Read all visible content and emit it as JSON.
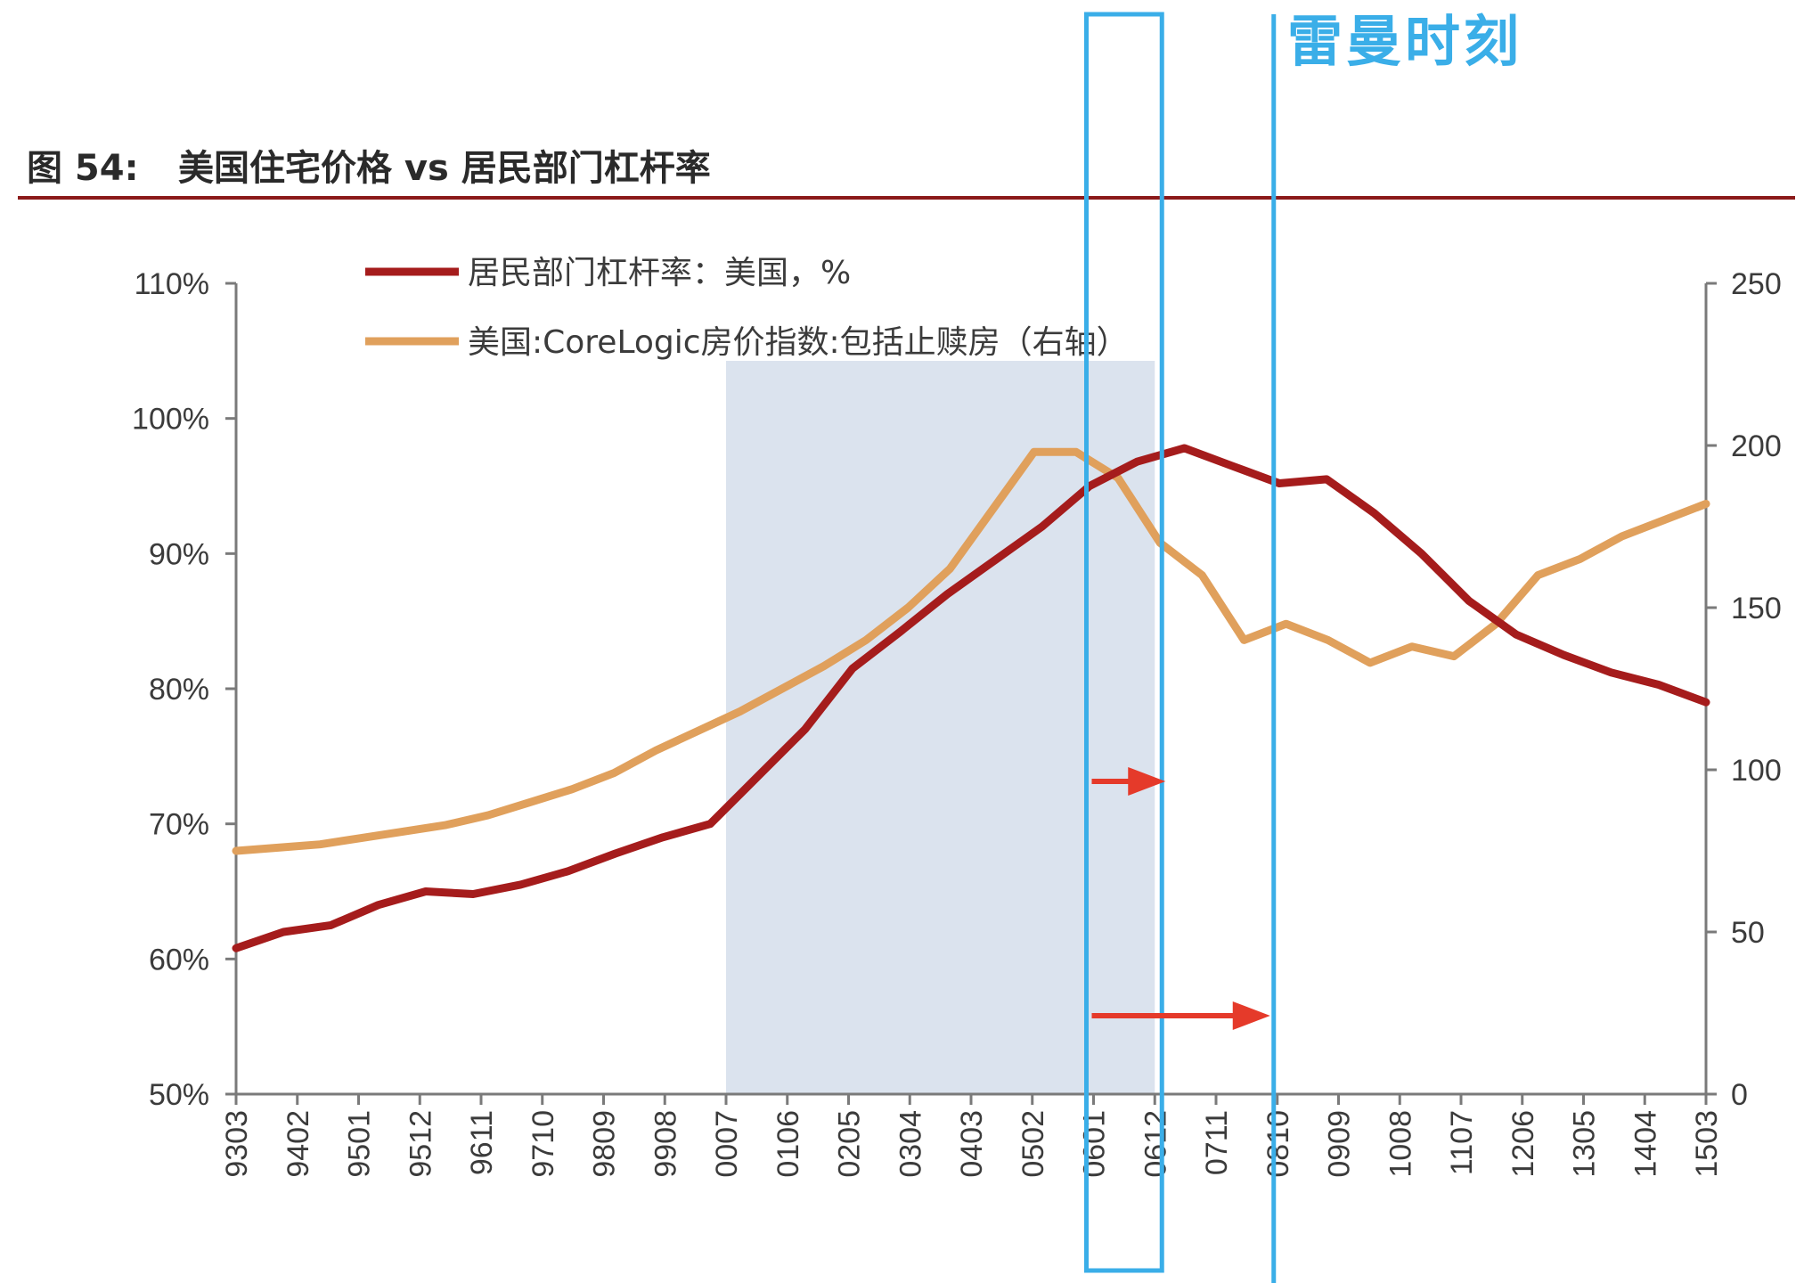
{
  "annotation": {
    "text": "雷曼时刻",
    "color": "#3aaee8"
  },
  "figure": {
    "number_label": "图 54:",
    "title": "美国住宅价格 vs 居民部门杠杆率",
    "rule_color": "#8b1a1a"
  },
  "chart_data": {
    "type": "line",
    "title": "美国住宅价格 vs 居民部门杠杆率",
    "x_ticks": [
      "9303",
      "9402",
      "9501",
      "9512",
      "9611",
      "9710",
      "9809",
      "9908",
      "0007",
      "0106",
      "0205",
      "0304",
      "0403",
      "0502",
      "0601",
      "0612",
      "0711",
      "0810",
      "0909",
      "1008",
      "1107",
      "1206",
      "1305",
      "1404",
      "1503"
    ],
    "left_axis": {
      "ticks": [
        "110%",
        "100%",
        "90%",
        "80%",
        "70%",
        "60%",
        "50%"
      ],
      "ylim": [
        50,
        110
      ],
      "unit": "%"
    },
    "right_axis": {
      "ticks": [
        "250",
        "200",
        "150",
        "100",
        "50",
        "0"
      ],
      "ylim": [
        0,
        250
      ]
    },
    "shaded_period": [
      "0007",
      "0612"
    ],
    "series": [
      {
        "name": "居民部门杠杆率：美国，%",
        "axis": "left",
        "color": "#a51c1c",
        "values": [
          60.8,
          62.0,
          62.5,
          64.0,
          65.0,
          64.8,
          65.5,
          66.5,
          67.8,
          69.0,
          70.0,
          73.5,
          77.0,
          81.5,
          84.2,
          87.0,
          89.5,
          92.0,
          95.0,
          96.8,
          97.8,
          96.5,
          95.2,
          95.5,
          93.0,
          90.0,
          86.5,
          84.0,
          82.5,
          81.2,
          80.3,
          79.0
        ]
      },
      {
        "name": "美国:CoreLogic房价指数:包括止赎房（右轴）",
        "axis": "right",
        "color": "#e0a05c",
        "values": [
          75,
          76,
          77,
          79,
          81,
          83,
          86,
          90,
          94,
          99,
          106,
          112,
          118,
          125,
          132,
          140,
          150,
          162,
          180,
          198,
          198,
          190,
          170,
          160,
          140,
          145,
          140,
          133,
          138,
          135,
          145,
          160,
          165,
          172,
          177,
          182
        ]
      }
    ]
  },
  "markers": {
    "box_color": "#3aaee8",
    "arrow_color": "#e53a2a"
  }
}
